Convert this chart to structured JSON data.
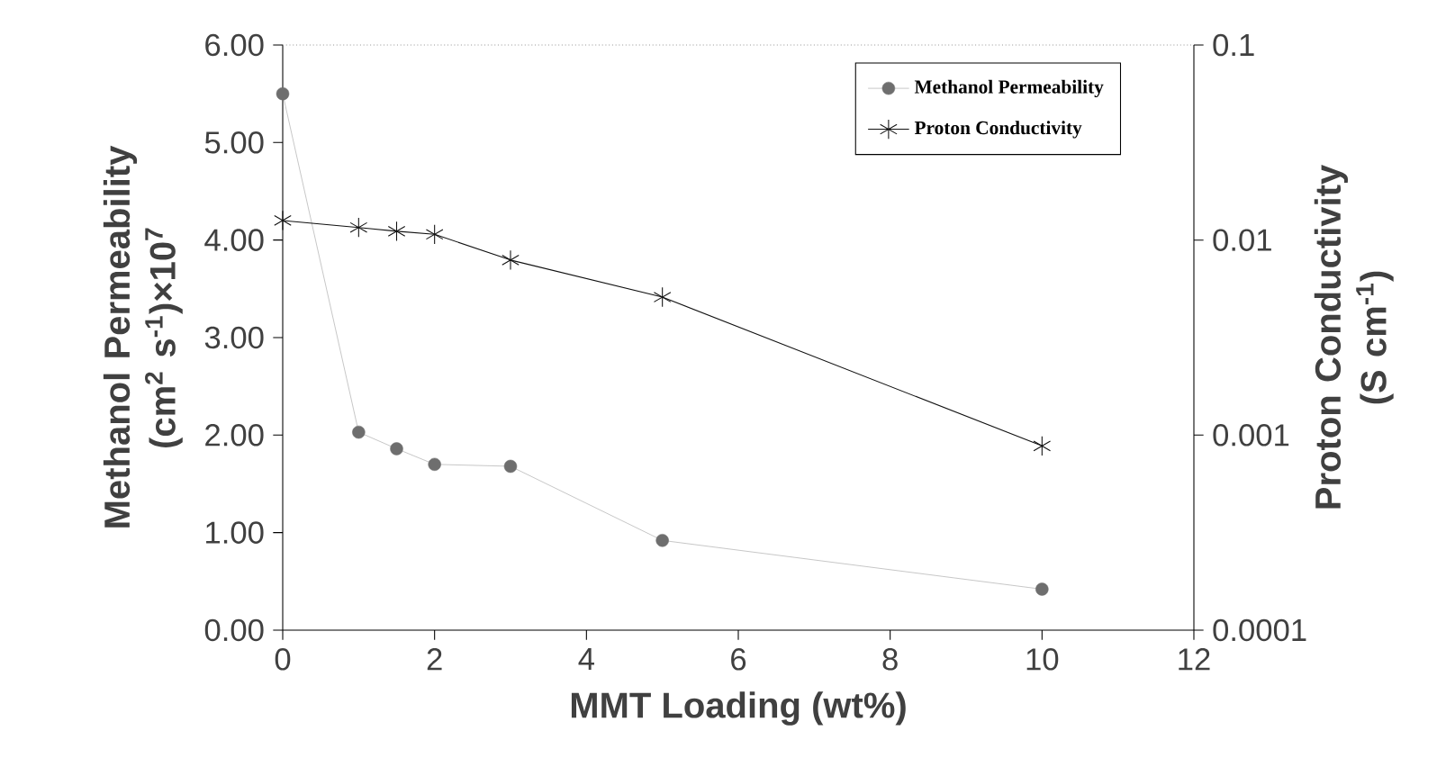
{
  "chart_data": {
    "type": "line",
    "xlabel": "MMT Loading (wt%)",
    "ylabel": "Methanol Permeability (cm$^{2}$ s$^{-1}$)×10$^{7}$",
    "y2label": "Proton Conductivity (S cm$^{-1}$)",
    "x": [
      0,
      1,
      1.5,
      2,
      3,
      5,
      10
    ],
    "series": [
      {
        "name": "Methanol Permeability",
        "color": "#6e6e6e",
        "marker": "circle",
        "values": [
          5.5,
          2.03,
          1.86,
          1.7,
          1.68,
          0.92,
          0.42
        ]
      },
      {
        "name": "Proton Conductivity",
        "color": "#111111",
        "marker": "cross",
        "axis": "y2",
        "values": [
          0.0126,
          0.0116,
          0.0111,
          0.0107,
          0.0079,
          0.0051,
          0.00088
        ]
      }
    ],
    "xlim": [
      0,
      12
    ],
    "xticks": [
      0,
      2,
      4,
      6,
      8,
      10,
      12
    ],
    "ylim": [
      0,
      6
    ],
    "yticks": [
      {
        "value": 0,
        "label": "0.00"
      },
      {
        "value": 1,
        "label": "1.00"
      },
      {
        "value": 2,
        "label": "2.00"
      },
      {
        "value": 3,
        "label": "3.00"
      },
      {
        "value": 4,
        "label": "4.00"
      },
      {
        "value": 5,
        "label": "5.00"
      },
      {
        "value": 6,
        "label": "6.00"
      }
    ],
    "y2lim": [
      0.0001,
      0.1
    ],
    "y2ticks": [
      0.0001,
      0.001,
      0.01,
      0.1
    ],
    "log": "y2",
    "legend": "top right"
  }
}
